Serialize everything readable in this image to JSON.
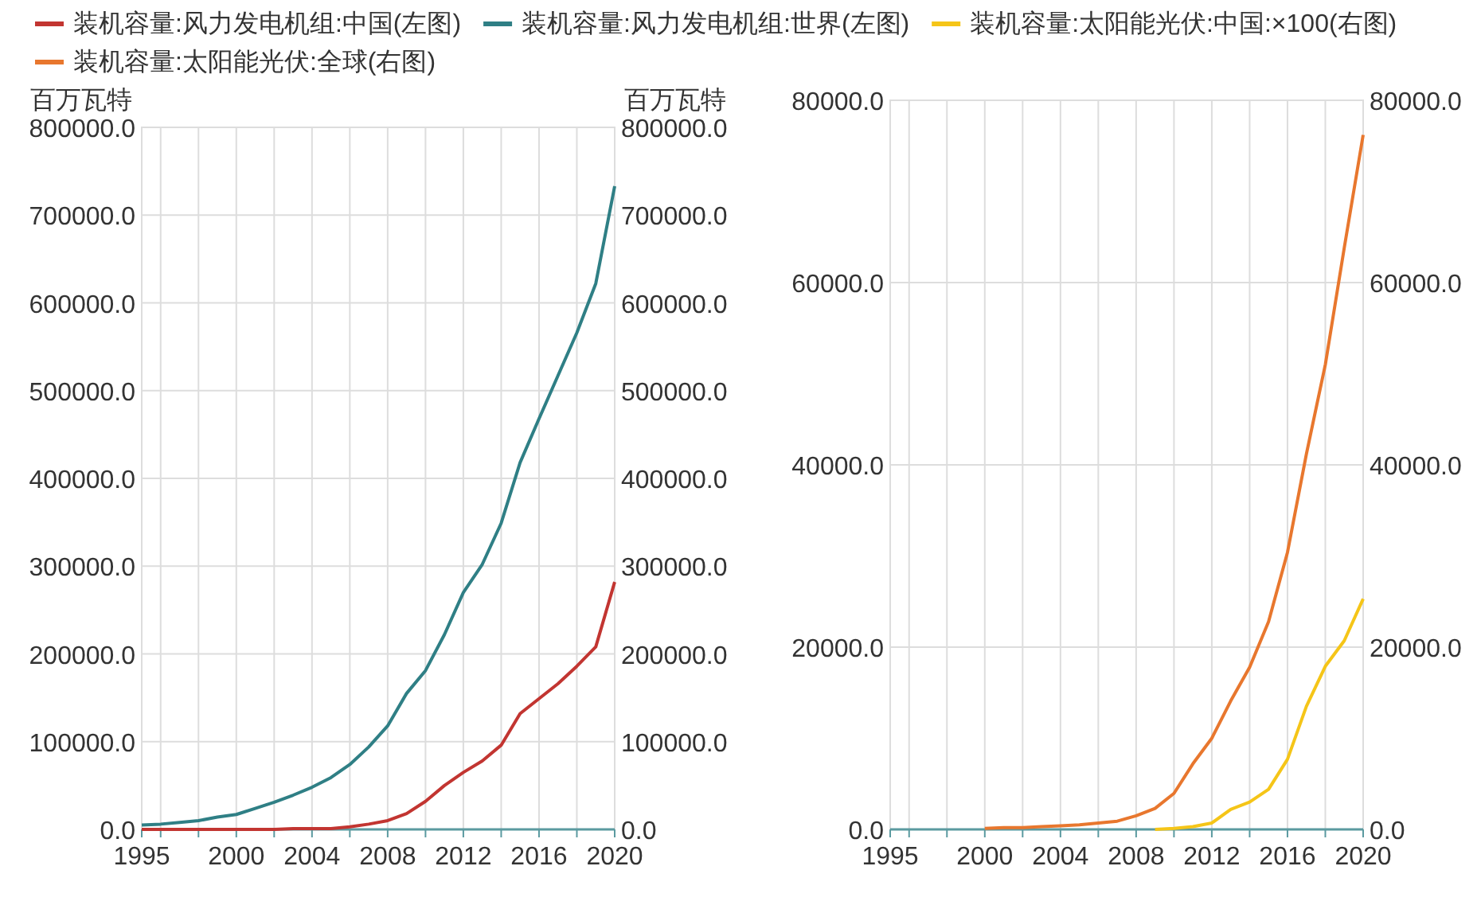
{
  "chart_data": [
    {
      "type": "line",
      "ylabel": "百万瓦特",
      "y2label": "百万瓦特",
      "legend": "top",
      "xlim": [
        1995,
        2020
      ],
      "xticks": [
        1995,
        {
          "value": 1996,
          "label": null
        },
        {
          "value": 1998,
          "label": null
        },
        2000,
        {
          "value": 2002,
          "label": null
        },
        2004,
        {
          "value": 2006,
          "label": null
        },
        2008,
        {
          "value": 2010,
          "label": null
        },
        2012,
        {
          "value": 2014,
          "label": null
        },
        2016,
        {
          "value": 2018,
          "label": null
        },
        2020
      ],
      "ylim": [
        0,
        800000
      ],
      "yticks": [
        {
          "value": 0,
          "label": "0.0"
        },
        {
          "value": 100000,
          "label": "100000.0"
        },
        {
          "value": 200000,
          "label": "200000.0"
        },
        {
          "value": 300000,
          "label": "300000.0"
        },
        {
          "value": 400000,
          "label": "400000.0"
        },
        {
          "value": 500000,
          "label": "500000.0"
        },
        {
          "value": 600000,
          "label": "600000.0"
        },
        {
          "value": 700000,
          "label": "700000.0"
        },
        {
          "value": 800000,
          "label": "800000.0"
        }
      ],
      "y2lim": [
        0,
        800000
      ],
      "y2ticks": [
        {
          "value": 0,
          "label": "0.0"
        },
        {
          "value": 100000,
          "label": "100000.0"
        },
        {
          "value": 200000,
          "label": "200000.0"
        },
        {
          "value": 300000,
          "label": "300000.0"
        },
        {
          "value": 400000,
          "label": "400000.0"
        },
        {
          "value": 500000,
          "label": "500000.0"
        },
        {
          "value": 600000,
          "label": "600000.0"
        },
        {
          "value": 700000,
          "label": "700000.0"
        },
        {
          "value": 800000,
          "label": "800000.0"
        }
      ],
      "grid": true,
      "marker": "none",
      "x": [
        1995,
        1996,
        1997,
        1998,
        1999,
        2000,
        2001,
        2002,
        2003,
        2004,
        2005,
        2006,
        2007,
        2008,
        2009,
        2010,
        2011,
        2012,
        2013,
        2014,
        2015,
        2016,
        2017,
        2018,
        2019,
        2020
      ],
      "series": [
        {
          "name": "装机容量:风力发电机组:中国(左图)",
          "color": "#c23531",
          "values": [
            0,
            0,
            0,
            0,
            0,
            0,
            0,
            0,
            1000,
            1000,
            1000,
            3000,
            6000,
            10000,
            18000,
            32000,
            50000,
            65000,
            78000,
            96000,
            132000,
            149000,
            166000,
            186000,
            208000,
            282000
          ]
        },
        {
          "name": "装机容量:风力发电机组:世界(左图)",
          "color": "#2f7f85",
          "values": [
            5000,
            6000,
            8000,
            10000,
            14000,
            17000,
            24000,
            31000,
            39000,
            48000,
            59000,
            74000,
            94000,
            118000,
            155000,
            181000,
            222000,
            270000,
            302000,
            349000,
            418000,
            468000,
            517000,
            566000,
            622000,
            733000
          ]
        }
      ]
    },
    {
      "type": "line",
      "legend": "top",
      "xlim": [
        1995,
        2020
      ],
      "xticks": [
        1995,
        {
          "value": 1996,
          "label": null
        },
        {
          "value": 1998,
          "label": null
        },
        2000,
        {
          "value": 2002,
          "label": null
        },
        2004,
        {
          "value": 2006,
          "label": null
        },
        2008,
        {
          "value": 2010,
          "label": null
        },
        2012,
        {
          "value": 2014,
          "label": null
        },
        2016,
        {
          "value": 2018,
          "label": null
        },
        2020
      ],
      "ylim": [
        0,
        80000
      ],
      "yticks": [
        {
          "value": 0,
          "label": "0.0"
        },
        {
          "value": 20000,
          "label": "20000.0"
        },
        {
          "value": 40000,
          "label": "40000.0"
        },
        {
          "value": 60000,
          "label": "60000.0"
        },
        {
          "value": 80000,
          "label": "80000.0"
        }
      ],
      "y2lim": [
        0,
        80000
      ],
      "y2ticks": [
        {
          "value": 0,
          "label": "0.0"
        },
        {
          "value": 20000,
          "label": "20000.0"
        },
        {
          "value": 40000,
          "label": "40000.0"
        },
        {
          "value": 60000,
          "label": "60000.0"
        },
        {
          "value": 80000,
          "label": "80000.0"
        }
      ],
      "grid": true,
      "marker": "none",
      "series": [
        {
          "name": "装机容量:太阳能光伏:中国:×100(右图)",
          "color": "#f5c518",
          "x": [
            2009,
            2010,
            2011,
            2012,
            2013,
            2014,
            2015,
            2016,
            2017,
            2018,
            2019,
            2020
          ],
          "values": [
            0,
            100,
            300,
            700,
            2200,
            3000,
            4400,
            7700,
            13500,
            17900,
            20700,
            25300
          ]
        },
        {
          "name": "装机容量:太阳能光伏:全球(右图)",
          "color": "#e8772e",
          "x": [
            2000,
            2001,
            2002,
            2003,
            2004,
            2005,
            2006,
            2007,
            2008,
            2009,
            2010,
            2011,
            2012,
            2013,
            2014,
            2015,
            2016,
            2017,
            2018,
            2019,
            2020
          ],
          "values": [
            100,
            200,
            200,
            300,
            400,
            500,
            700,
            900,
            1500,
            2300,
            3950,
            7200,
            10000,
            14100,
            17800,
            22800,
            30400,
            41200,
            51000,
            63800,
            76200
          ]
        }
      ]
    }
  ]
}
